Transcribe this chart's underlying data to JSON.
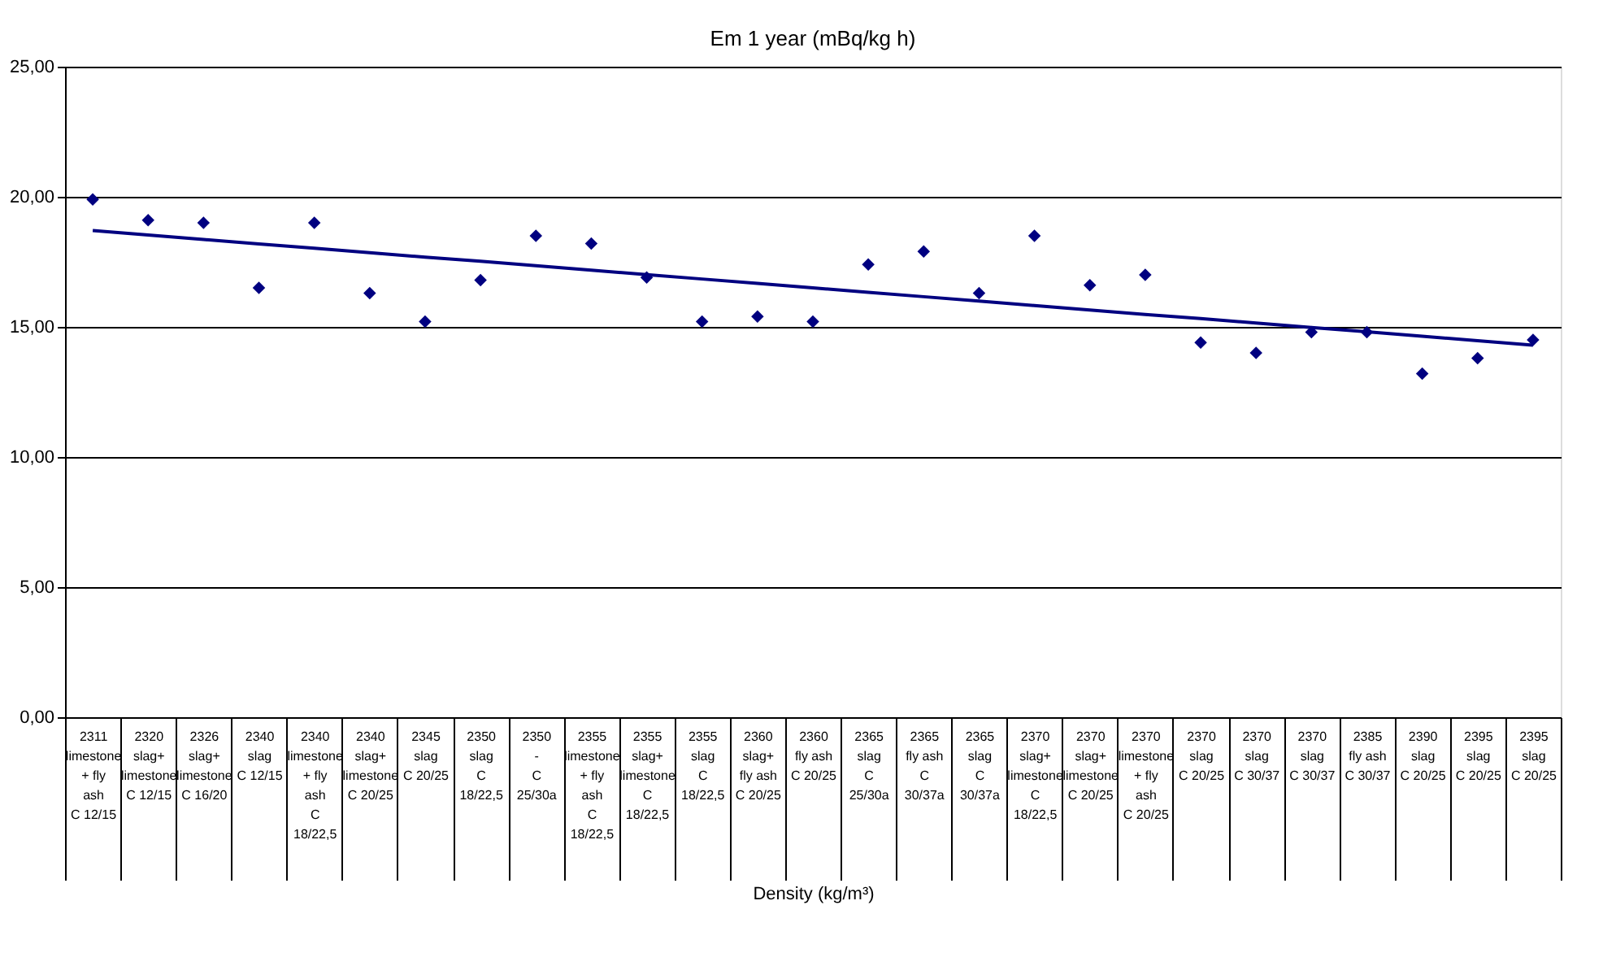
{
  "chart_data": {
    "type": "scatter",
    "title": "Em 1 year (mBq/kg h)",
    "xlabel": "Density (kg/m³)",
    "categories": [
      "2311\nlimestone + fly ash\nC 12/15",
      "2320\nslag+ limestone\nC 12/15",
      "2326\nslag+ limestone\nC 16/20",
      "2340\nslag\nC 12/15",
      "2340\nlimestone + fly ash\nC 18/22,5",
      "2340\nslag+ limestone\nC 20/25",
      "2345\nslag\nC 20/25",
      "2350\nslag\nC 18/22,5",
      "2350\n-\nC 25/30a",
      "2355\nlimestone + fly ash\nC 18/22,5",
      "2355\nslag+ limestone\nC 18/22,5",
      "2355\nslag\nC 18/22,5",
      "2360\nslag+ fly ash\nC 20/25",
      "2360\nfly ash\nC 20/25",
      "2365\nslag\nC 25/30a",
      "2365\nfly ash\nC 30/37a",
      "2365\nslag\nC 30/37a",
      "2370\nslag+ limestone\nC 18/22,5",
      "2370\nslag+ limestone\nC 20/25",
      "2370\nlimestone + fly ash\nC 20/25",
      "2370\nslag\nC 20/25",
      "2370\nslag\nC 30/37",
      "2370\nslag\nC 30/37",
      "2385\nfly ash\nC 30/37",
      "2390\nslag\nC 20/25",
      "2395\nslag\nC 20/25",
      "2395\nslag\nC 20/25"
    ],
    "series": [
      {
        "type": "scatter",
        "color": "#000080",
        "marker": "diamond",
        "values": [
          19.9,
          19.1,
          19.0,
          16.5,
          19.0,
          16.3,
          15.2,
          16.8,
          18.5,
          18.2,
          16.9,
          15.2,
          15.4,
          15.2,
          17.4,
          17.9,
          16.3,
          18.5,
          16.6,
          17.0,
          14.4,
          14.0,
          14.8,
          14.8,
          13.2,
          13.8,
          14.5
        ]
      },
      {
        "type": "line",
        "color": "#000080",
        "line_style": "solid",
        "values": [
          18.7,
          18.53,
          18.36,
          18.19,
          18.02,
          17.85,
          17.68,
          17.52,
          17.35,
          17.18,
          17.01,
          16.84,
          16.67,
          16.5,
          16.33,
          16.16,
          15.99,
          15.82,
          15.65,
          15.48,
          15.32,
          15.15,
          14.98,
          14.81,
          14.64,
          14.47,
          14.3
        ]
      }
    ],
    "ylim": [
      0,
      25
    ],
    "yticks": [
      {
        "value": 0,
        "label": "0,00"
      },
      {
        "value": 5,
        "label": "5,00"
      },
      {
        "value": 10,
        "label": "10,00"
      },
      {
        "value": 15,
        "label": "15,00"
      },
      {
        "value": 20,
        "label": "20,00"
      },
      {
        "value": 25,
        "label": "25,00"
      }
    ],
    "grid": "y"
  }
}
